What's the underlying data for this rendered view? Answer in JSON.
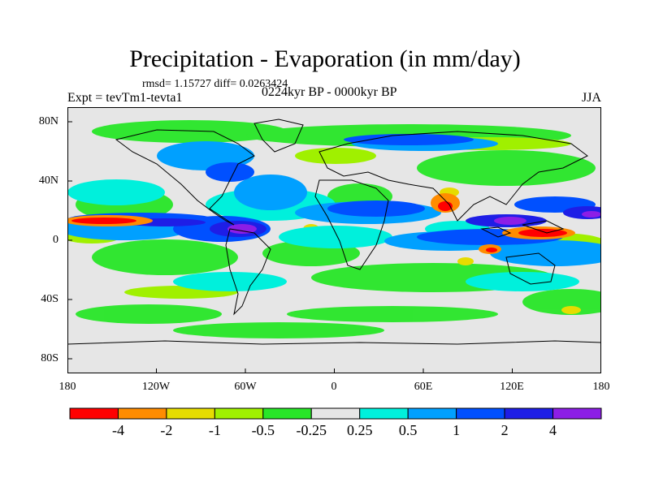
{
  "title": "Precipitation - Evaporation (in mm/day)",
  "stats": "rmsd= 1.15727 diff= 0.0263424",
  "experiment": "Expt = tevTm1-tevta1",
  "period": "0224kyr BP - 0000kyr BP",
  "season": "JJA",
  "axes": {
    "y_ticks": [
      "80N",
      "40N",
      "0",
      "40S",
      "80S"
    ],
    "x_ticks": [
      "180",
      "120W",
      "60W",
      "0",
      "60E",
      "120E",
      "180"
    ]
  },
  "colorbar": {
    "colors": [
      "#ff0000",
      "#ff8c00",
      "#e6dc00",
      "#a0f000",
      "#28e628",
      "#e6e6e6",
      "#00f0dc",
      "#00a0ff",
      "#0050ff",
      "#1e1ee6",
      "#8c1ee6"
    ],
    "labels": [
      "-4",
      "-2",
      "-1",
      "-0.5",
      "-0.25",
      "0.25",
      "0.5",
      "1",
      "2",
      "4"
    ]
  }
}
